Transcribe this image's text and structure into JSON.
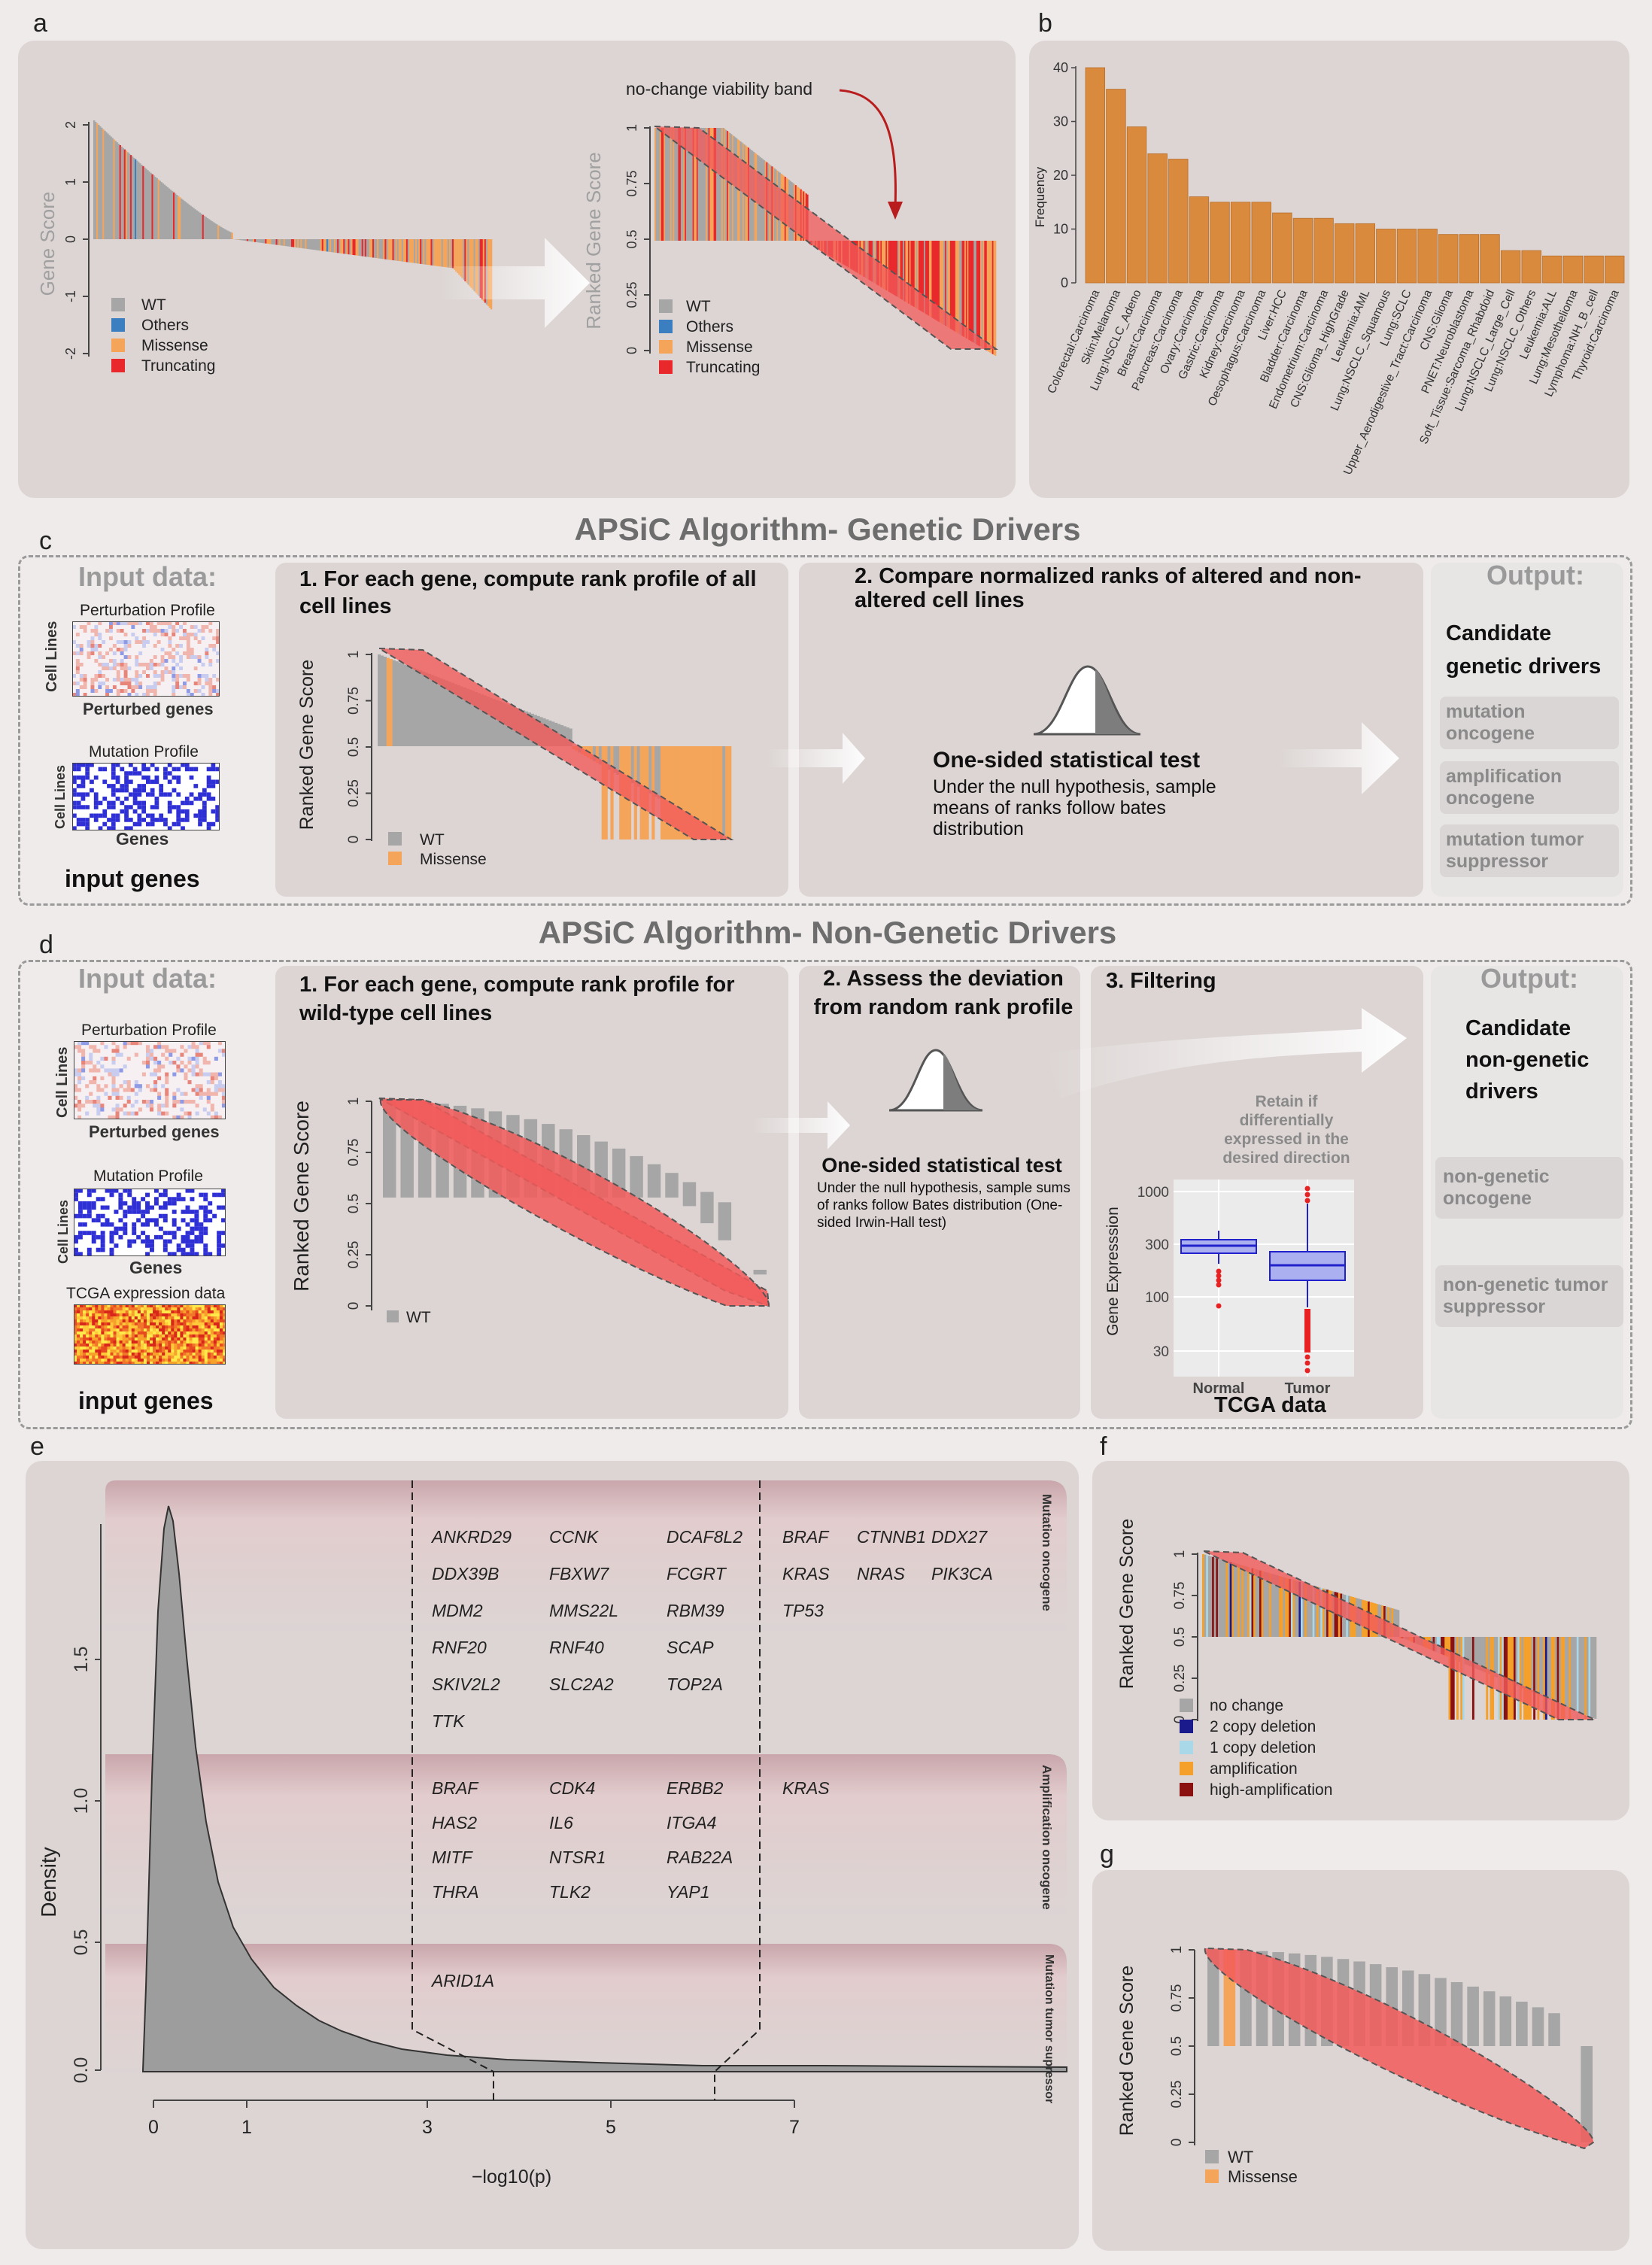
{
  "letters": {
    "a": "a",
    "b": "b",
    "c": "c",
    "d": "d",
    "e": "e",
    "f": "f",
    "g": "g"
  },
  "panel_a": {
    "left": {
      "ylabel": "Gene Score",
      "ticks": [
        "2",
        "1",
        "0",
        "-1",
        "-2"
      ]
    },
    "right": {
      "ylabel": "Ranked Gene Score",
      "ticks": [
        "1",
        "0.75",
        "0.5",
        "0.25",
        "0"
      ],
      "annotation": "no-change viability band"
    },
    "legend": [
      {
        "label": "WT",
        "color": "#a6a6a6"
      },
      {
        "label": "Others",
        "color": "#3b7fc0"
      },
      {
        "label": "Missense",
        "color": "#f5a55a"
      },
      {
        "label": "Truncating",
        "color": "#e8282b"
      }
    ]
  },
  "chart_data": {
    "type": "bar",
    "ylabel": "Frequency",
    "ylim": [
      0,
      40
    ],
    "yticks": [
      "0",
      "10",
      "20",
      "30",
      "40"
    ],
    "categories": [
      "Colorectal:Carcinoma",
      "Skin:Melanoma",
      "Lung:NSCLC_Adeno",
      "Breast:Carcinoma",
      "Pancreas:Carcinoma",
      "Ovary:Carcinoma",
      "Gastric:Carcinoma",
      "Kidney:Carcinoma",
      "Oesophagus:Carcinoma",
      "Liver:HCC",
      "Bladder:Carcinoma",
      "Endometrium:Carcinoma",
      "CNS:Glioma_HighGrade",
      "Leukemia:AML",
      "Lung:NSCLC_Squamous",
      "Lung:SCLC",
      "Upper_Aerodigestive_Tract:Carcinoma",
      "CNS:Glioma",
      "PNET:Neuroblastoma",
      "Soft_Tissue:Sarcoma_Rhabdoid",
      "Lung:NSCLC_Large_Cell",
      "Lung:NSCLC_Others",
      "Leukemia:ALL",
      "Lung:Mesothelioma",
      "Lymphoma:NH_B_cell",
      "Thyroid:Carcinoma"
    ],
    "values": [
      40,
      36,
      29,
      24,
      23,
      16,
      15,
      15,
      15,
      13,
      12,
      12,
      11,
      11,
      10,
      10,
      10,
      9,
      9,
      9,
      6,
      6,
      5,
      5,
      5,
      5
    ],
    "color": "#d98a3d"
  },
  "panel_c": {
    "title": "APSiC Algorithm- Genetic Drivers",
    "input_header": "Input data:",
    "perturbation_label": "Perturbation Profile",
    "cell_lines": "Cell Lines",
    "perturbed_genes": "Perturbed genes",
    "mutation_label": "Mutation Profile",
    "genes": "Genes",
    "input_genes": "input genes",
    "step1": "1. For each gene, compute rank profile of all  cell lines",
    "step1_ylabel": "Ranked Gene Score",
    "ticks": [
      "1",
      "0.75",
      "0.5",
      "0.25",
      "0"
    ],
    "legend": [
      {
        "label": "WT",
        "color": "#a6a6a6"
      },
      {
        "label": "Missense",
        "color": "#f5a55a"
      }
    ],
    "step2": "2. Compare normalized ranks of altered and non-altered cell lines",
    "test_title": "One-sided statistical test",
    "test_desc": "Under the null hypothesis, sample means of ranks follow bates distribution",
    "output_header": "Output:",
    "candidate": "Candidate genetic drivers",
    "outputs": [
      "mutation oncogene",
      "amplification oncogene",
      "mutation tumor suppressor"
    ]
  },
  "panel_d": {
    "title": "APSiC Algorithm- Non-Genetic Drivers",
    "input_header": "Input data:",
    "perturbation_label": "Perturbation Profile",
    "cell_lines": "Cell Lines",
    "perturbed_genes": "Perturbed genes",
    "mutation_label": "Mutation Profile",
    "genes": "Genes",
    "tcga_label": "TCGA expression data",
    "input_genes": "input genes",
    "step1": "1. For each gene, compute rank profile for wild-type cell lines",
    "step1_ylabel": "Ranked Gene Score",
    "ticks": [
      "1",
      "0.75",
      "0.5",
      "0.25",
      "0"
    ],
    "legend_wt": "WT",
    "step2": "2. Assess the deviation from random rank profile",
    "test_title": "One-sided statistical test",
    "test_desc": "Under the null hypothesis, sample sums of ranks follow Bates distribution (One-sided Irwin-Hall test)",
    "step3": "3. Filtering",
    "retain": "Retain if differentially expressed in the desired direction",
    "box_ylabel": "Gene Expresssion",
    "box_yticks": [
      "1000",
      "300",
      "100",
      "30"
    ],
    "box_x": [
      "Normal",
      "Tumor"
    ],
    "tcga_data": "TCGA data",
    "output_header": "Output:",
    "candidate": "Candidate non-genetic drivers",
    "outputs": [
      "non-genetic oncogene",
      "non-genetic tumor suppressor"
    ]
  },
  "panel_e": {
    "ylabel": "Density",
    "xlabel": "−log10(p)",
    "yticks": [
      "0.0",
      "0.5",
      "1.0",
      "1.5"
    ],
    "xticks": [
      "0",
      "1",
      "3",
      "5",
      "7"
    ],
    "bands": [
      "Mutation oncogene",
      "Amplification oncogene",
      "Mutation tumor supressor"
    ],
    "mutation_genes_left": [
      "ANKRD29",
      "CCNK",
      "DCAF8L2",
      "DDX39B",
      "FBXW7",
      "FCGRT",
      "MDM2",
      "MMS22L",
      "RBM39",
      "RNF20",
      "RNF40",
      "SCAP",
      "SKIV2L2",
      "SLC2A2",
      "TOP2A",
      "TTK"
    ],
    "mutation_genes_right": [
      "BRAF",
      "CTNNB1",
      "DDX27",
      "KRAS",
      "NRAS",
      "PIK3CA",
      "TP53"
    ],
    "amp_genes_left": [
      "BRAF",
      "CDK4",
      "ERBB2",
      "HAS2",
      "IL6",
      "ITGA4",
      "MITF",
      "NTSR1",
      "RAB22A",
      "THRA",
      "TLK2",
      "YAP1"
    ],
    "amp_genes_right": [
      "KRAS"
    ],
    "ts_genes_left": [
      "ARID1A"
    ]
  },
  "panel_f": {
    "ylabel": "Ranked Gene Score",
    "ticks": [
      "1",
      "0.75",
      "0.5",
      "0.25",
      "0"
    ],
    "legend": [
      {
        "label": "no change",
        "color": "#a6a6a6"
      },
      {
        "label": "2 copy deletion",
        "color": "#1a1a8c"
      },
      {
        "label": "1 copy deletion",
        "color": "#a9d8e8"
      },
      {
        "label": "amplification",
        "color": "#f5a02a"
      },
      {
        "label": "high-amplification",
        "color": "#8b1010"
      }
    ]
  },
  "panel_g": {
    "ylabel": "Ranked Gene Score",
    "ticks": [
      "1",
      "0.75",
      "0.5",
      "0.25",
      "0"
    ],
    "legend": [
      {
        "label": "WT",
        "color": "#a6a6a6"
      },
      {
        "label": "Missense",
        "color": "#f5a55a"
      }
    ]
  }
}
